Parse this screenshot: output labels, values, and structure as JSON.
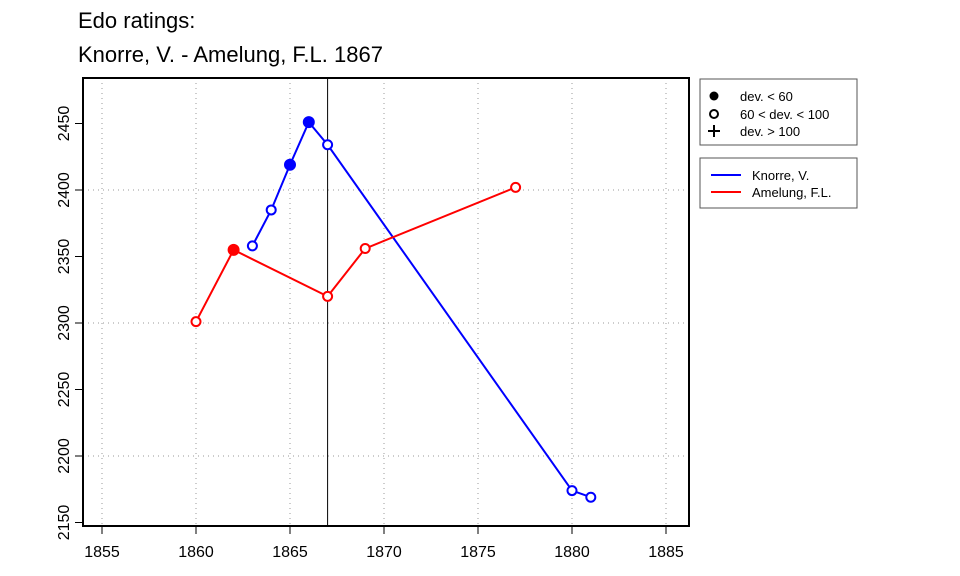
{
  "chart_data": {
    "type": "line",
    "title": [
      "Edo ratings:",
      "Knorre, V. - Amelung, F.L. 1867"
    ],
    "xlabel": "",
    "ylabel": "",
    "xlim": [
      1854,
      1886
    ],
    "ylim": [
      2147,
      2484
    ],
    "xticks": [
      1855,
      1860,
      1865,
      1870,
      1875,
      1880,
      1885
    ],
    "yticks": [
      2150,
      2200,
      2250,
      2300,
      2350,
      2400,
      2450
    ],
    "xgrid": [
      1855,
      1860,
      1865,
      1870,
      1875,
      1880,
      1885
    ],
    "ygrid": [
      2200,
      2300,
      2400
    ],
    "grid": true,
    "vline": 1867,
    "series": [
      {
        "name": "Knorre, V.",
        "color": "#0000ff",
        "x": [
          1863,
          1864,
          1865,
          1866,
          1867,
          1880,
          1881
        ],
        "y": [
          2358,
          2385,
          2419,
          2451,
          2434,
          2174,
          2169
        ],
        "marker": [
          "open",
          "open",
          "filled",
          "filled",
          "open",
          "open",
          "open"
        ]
      },
      {
        "name": "Amelung, F.L.",
        "color": "#ff0000",
        "x": [
          1860,
          1862,
          1867,
          1869,
          1877
        ],
        "y": [
          2301,
          2355,
          2320,
          2356,
          2402
        ],
        "marker": [
          "open",
          "filled",
          "open",
          "open",
          "open"
        ]
      }
    ],
    "marker_legend": [
      {
        "symbol": "filled",
        "label": "dev. < 60"
      },
      {
        "symbol": "open",
        "label": "60 < dev. < 100"
      },
      {
        "symbol": "plus",
        "label": "dev. > 100"
      }
    ],
    "legend_placement": "right"
  }
}
